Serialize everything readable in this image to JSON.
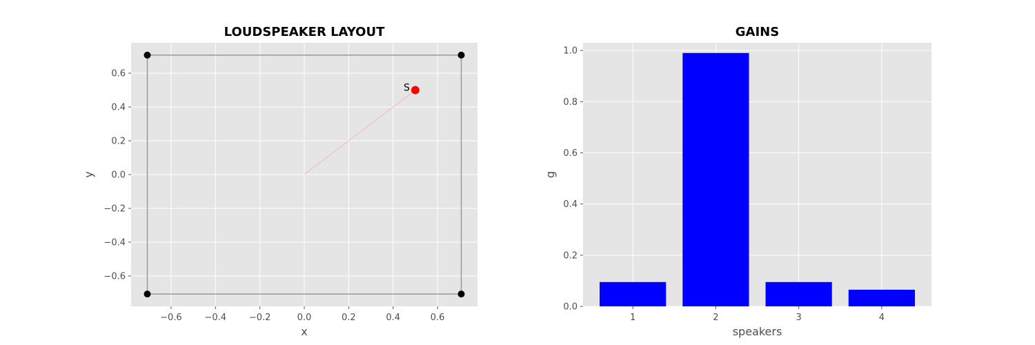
{
  "chart_data": [
    {
      "type": "scatter",
      "title": "LOUDSPEAKER LAYOUT",
      "xlabel": "x",
      "ylabel": "y",
      "xlim": [
        -0.78,
        0.78
      ],
      "ylim": [
        -0.78,
        0.78
      ],
      "xticks": [
        -0.6,
        -0.4,
        -0.2,
        0.0,
        0.2,
        0.4,
        0.6
      ],
      "xtick_labels": [
        "−0.6",
        "−0.4",
        "−0.2",
        "0.0",
        "0.2",
        "0.4",
        "0.6"
      ],
      "yticks": [
        -0.6,
        -0.4,
        -0.2,
        0.0,
        0.2,
        0.4,
        0.6
      ],
      "ytick_labels": [
        "−0.6",
        "−0.4",
        "−0.2",
        "0.0",
        "0.2",
        "0.4",
        "0.6"
      ],
      "grid": true,
      "speakers": {
        "x": [
          -0.707,
          0.707,
          0.707,
          -0.707
        ],
        "y": [
          0.707,
          0.707,
          -0.707,
          -0.707
        ],
        "color": "#000000"
      },
      "source": {
        "label": "S",
        "x": 0.5,
        "y": 0.5,
        "color": "#ff0000"
      },
      "outline_color": "#999999",
      "ray_color": "#f0b8b8"
    },
    {
      "type": "bar",
      "title": "GAINS",
      "xlabel": "speakers",
      "ylabel": "g",
      "categories": [
        "1",
        "2",
        "3",
        "4"
      ],
      "values": [
        0.095,
        0.99,
        0.095,
        0.065
      ],
      "ylim": [
        0,
        1.03
      ],
      "yticks": [
        0.0,
        0.2,
        0.4,
        0.6,
        0.8,
        1.0
      ],
      "ytick_labels": [
        "0.0",
        "0.2",
        "0.4",
        "0.6",
        "0.8",
        "1.0"
      ],
      "xlim": [
        0.4,
        4.6
      ],
      "grid": true,
      "bar_color": "#0000ff"
    }
  ],
  "colors": {
    "axes_bg": "#e5e5e5",
    "grid": "#ffffff"
  }
}
